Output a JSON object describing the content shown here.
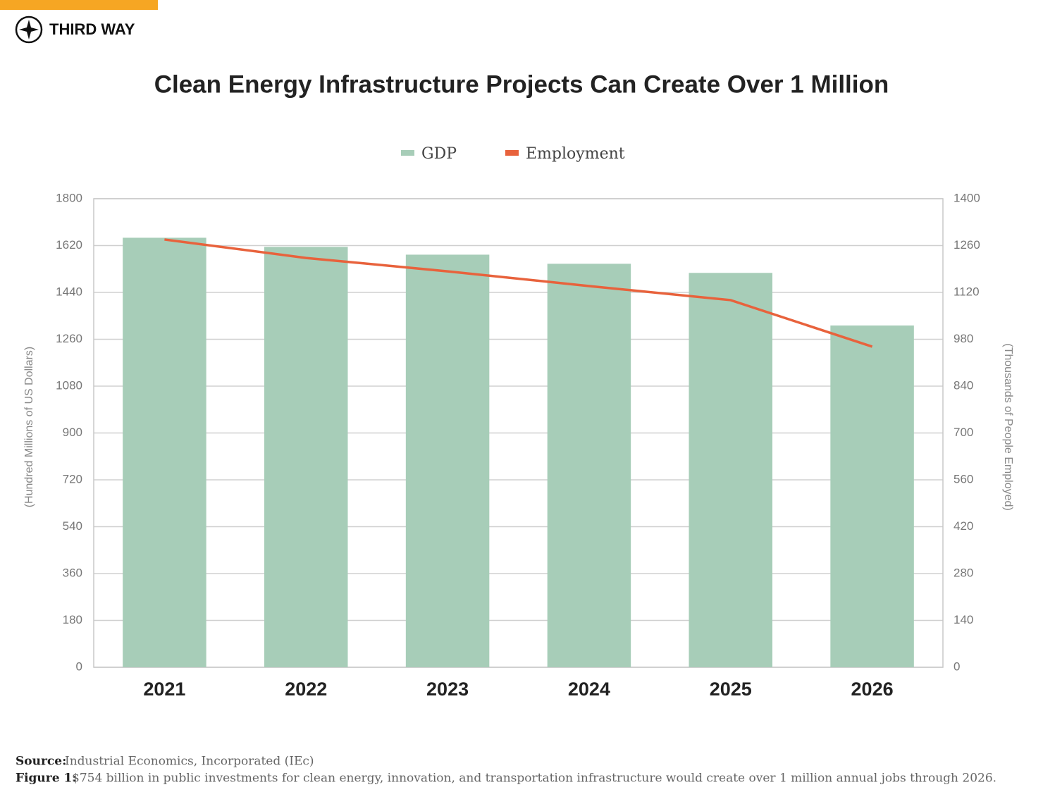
{
  "header": {
    "brand": "THIRD WAY"
  },
  "chart_data": {
    "type": "bar-line",
    "title": "Clean Energy Infrastructure Projects Can Create Over 1 Million",
    "categories": [
      "2021",
      "2022",
      "2023",
      "2024",
      "2025",
      "2026"
    ],
    "series": [
      {
        "name": "GDP",
        "type": "bar",
        "color": "#a7cdb8",
        "values": [
          1650,
          1615,
          1585,
          1550,
          1515,
          1313
        ]
      },
      {
        "name": "Employment",
        "type": "line",
        "axis": "y2",
        "color": "#e8623c",
        "values": [
          1278,
          1223,
          1183,
          1139,
          1097,
          958
        ]
      }
    ],
    "ylabel": "(Hundred Millions of US Dollars)",
    "y2label": "(Thousands of People Employed)",
    "ylim": [
      0,
      1800
    ],
    "yticks": [
      0,
      180,
      360,
      540,
      720,
      900,
      1080,
      1260,
      1440,
      1620,
      1800
    ],
    "y2lim": [
      0,
      1400
    ],
    "y2ticks": [
      0,
      140,
      280,
      420,
      560,
      700,
      840,
      980,
      1120,
      1260,
      1400
    ],
    "grid": true,
    "legend": "top"
  },
  "footer": {
    "source_label": "Source:",
    "source_text": "Industrial Economics, Incorporated (IEc)",
    "figure_label": "Figure 1:",
    "figure_text": "$754 billion in public investments for clean energy, innovation, and transportation infrastructure would create over 1 million annual jobs through 2026."
  }
}
